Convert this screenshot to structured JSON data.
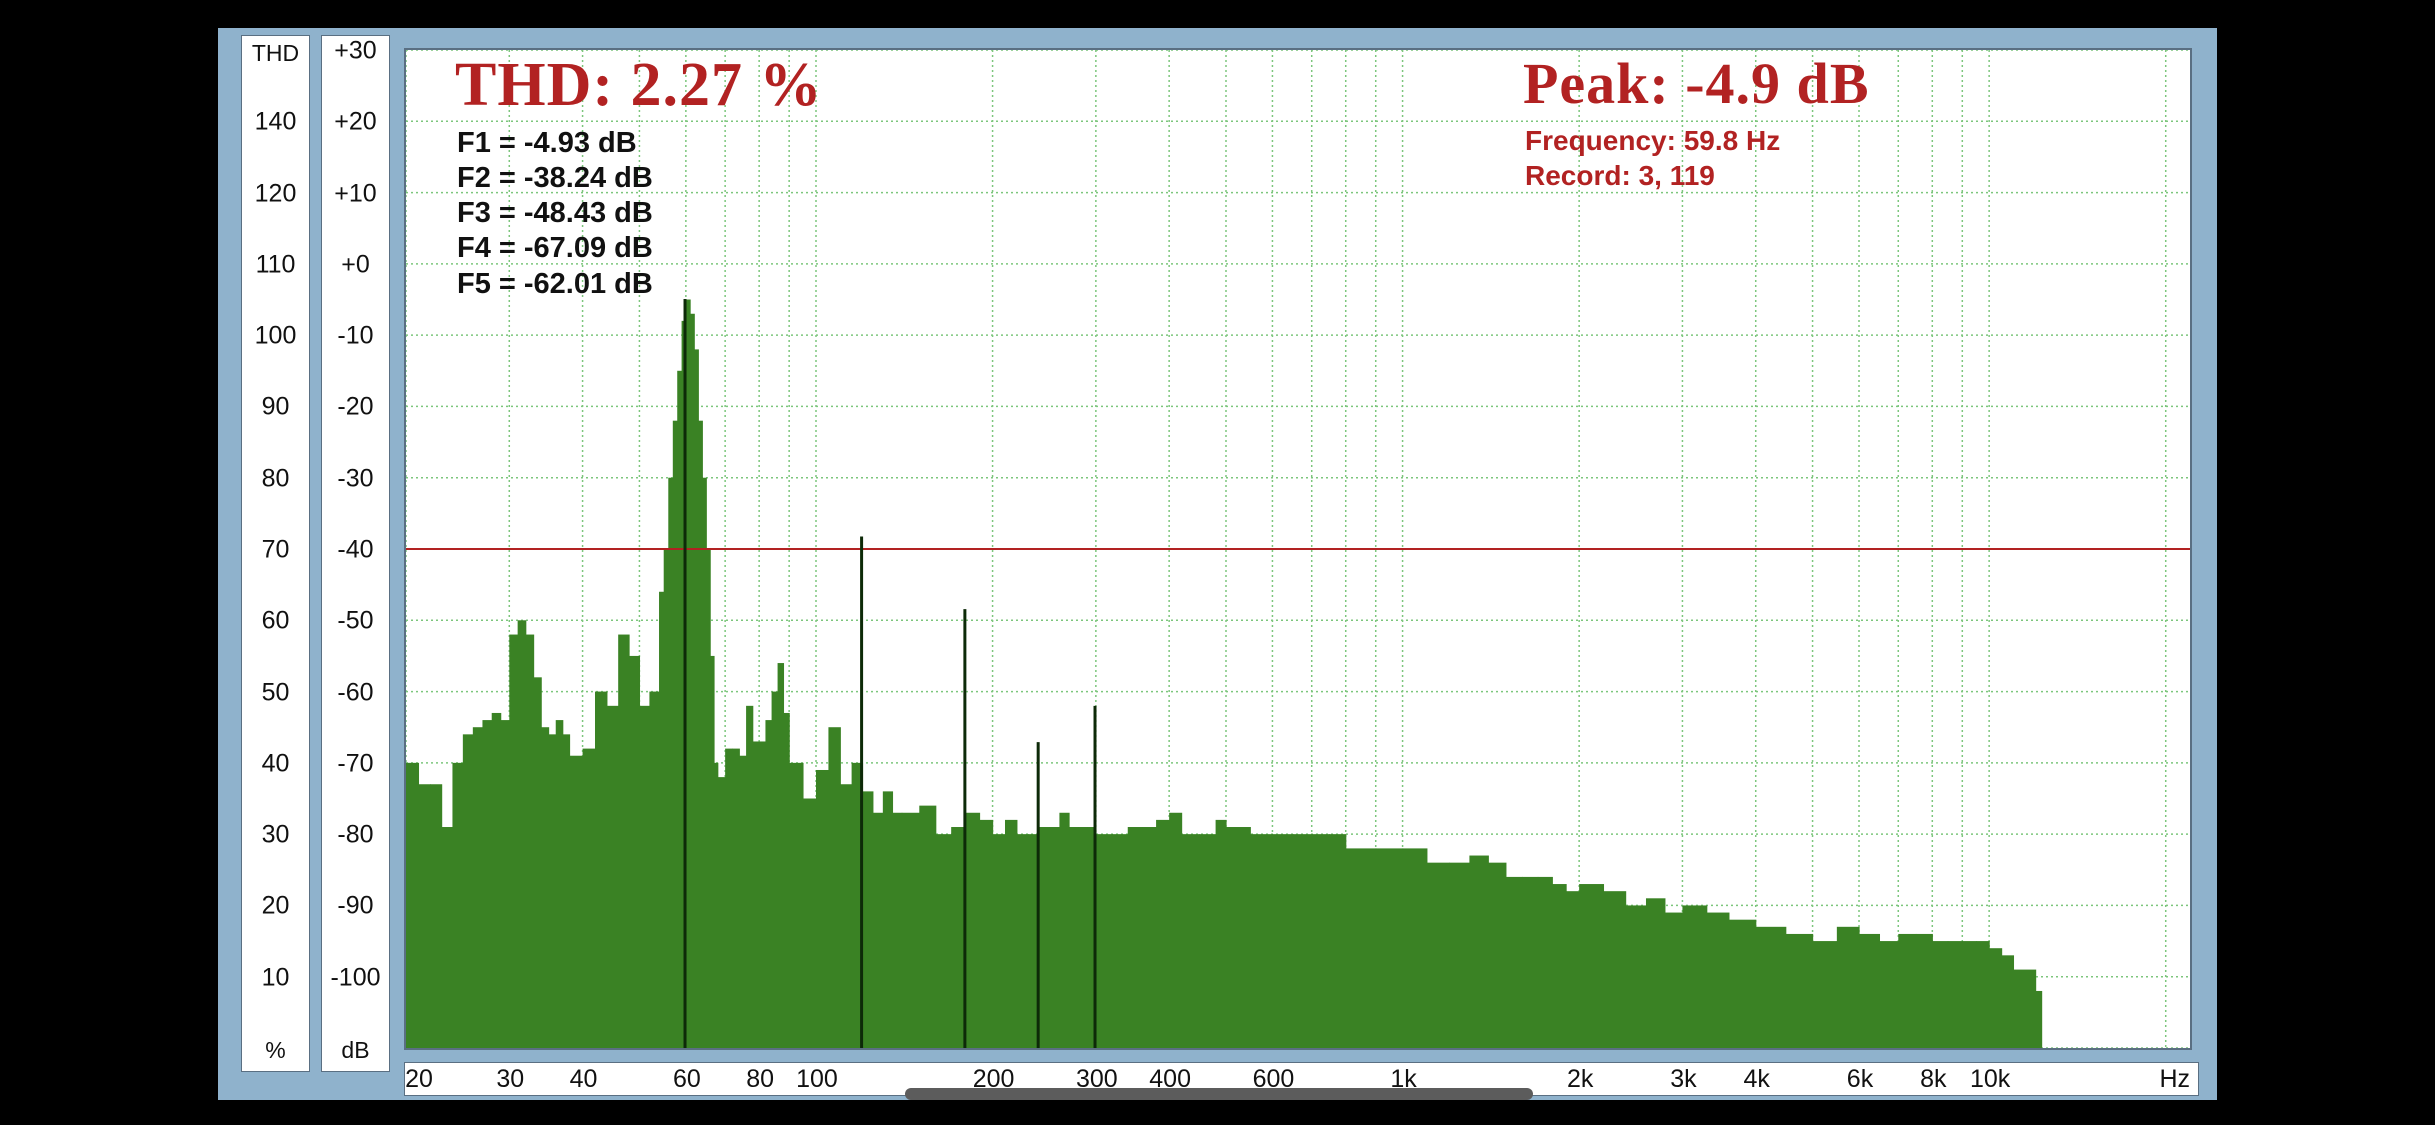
{
  "colors": {
    "bars": "#3a8224",
    "harmonic_lines": "#0d2a08",
    "threshold": "#b22222",
    "grid": "#7cc67c",
    "title_text": "#b22222"
  },
  "thd_scale": {
    "label": "THD",
    "unit": "%",
    "ticks": [
      "140",
      "120",
      "110",
      "100",
      "90",
      "80",
      "70",
      "60",
      "50",
      "40",
      "30",
      "20",
      "10"
    ]
  },
  "db_scale": {
    "unit": "dB",
    "ticks": [
      "+30",
      "+20",
      "+10",
      "+0",
      "-10",
      "-20",
      "-30",
      "-40",
      "-50",
      "-60",
      "-70",
      "-80",
      "-90",
      "-100"
    ]
  },
  "x_axis": {
    "unit": "Hz",
    "tick_labels": [
      "20",
      "30",
      "40",
      "60",
      "80",
      "100",
      "200",
      "300",
      "400",
      "600",
      "1k",
      "2k",
      "3k",
      "4k",
      "6k",
      "8k",
      "10k"
    ]
  },
  "readout": {
    "thd": "THD: 2.27 %",
    "peak": "Peak: -4.9 dB",
    "frequency": "Frequency: 59.8 Hz",
    "record": "Record: 3,  119",
    "harmonics": [
      "F1 = -4.93 dB",
      "F2 = -38.24 dB",
      "F3 = -48.43 dB",
      "F4 = -67.09 dB",
      "F5 = -62.01 dB"
    ]
  },
  "chart_data": {
    "type": "bar",
    "title": "",
    "xlabel": "Hz",
    "ylabel": "dB",
    "x_scale": "log",
    "xlim": [
      20,
      22000
    ],
    "ylim": [
      -110,
      30
    ],
    "grid": true,
    "threshold_db": -40,
    "harmonics": [
      {
        "name": "F1",
        "freq_hz": 59.8,
        "db": -4.93
      },
      {
        "name": "F2",
        "freq_hz": 119.6,
        "db": -38.24
      },
      {
        "name": "F3",
        "freq_hz": 179.4,
        "db": -48.43
      },
      {
        "name": "F4",
        "freq_hz": 239.2,
        "db": -67.09
      },
      {
        "name": "F5",
        "freq_hz": 299,
        "db": -62.01
      }
    ],
    "spectrum_hz": [
      20,
      21,
      22,
      23,
      24,
      25,
      26,
      27,
      28,
      29,
      30,
      31,
      32,
      33,
      34,
      35,
      36,
      37,
      38,
      40,
      42,
      44,
      46,
      48,
      50,
      52,
      54,
      55,
      56,
      57,
      58,
      59,
      60,
      61,
      62,
      63,
      64,
      65,
      66,
      67,
      68,
      70,
      72,
      74,
      76,
      78,
      80,
      82,
      84,
      86,
      88,
      90,
      95,
      100,
      105,
      110,
      115,
      120,
      125,
      130,
      135,
      140,
      150,
      160,
      170,
      180,
      190,
      200,
      210,
      220,
      230,
      240,
      250,
      260,
      270,
      280,
      290,
      300,
      320,
      340,
      360,
      380,
      400,
      420,
      450,
      480,
      500,
      550,
      600,
      650,
      700,
      750,
      800,
      900,
      1000,
      1100,
      1200,
      1300,
      1400,
      1500,
      1600,
      1700,
      1800,
      1900,
      2000,
      2200,
      2400,
      2600,
      2800,
      3000,
      3300,
      3600,
      4000,
      4500,
      5000,
      5500,
      6000,
      6500,
      7000,
      7500,
      8000,
      8500,
      9000,
      9500,
      10000,
      10500,
      11000,
      12000
    ],
    "spectrum_db": [
      -70,
      -73,
      -73,
      -79,
      -70,
      -66,
      -65,
      -64,
      -63,
      -64,
      -52,
      -50,
      -52,
      -58,
      -65,
      -66,
      -64,
      -66,
      -69,
      -68,
      -60,
      -62,
      -52,
      -55,
      -62,
      -60,
      -46,
      -40,
      -30,
      -22,
      -15,
      -8,
      -5,
      -7,
      -12,
      -22,
      -30,
      -40,
      -55,
      -70,
      -72,
      -68,
      -68,
      -69,
      -62,
      -67,
      -67,
      -64,
      -60,
      -56,
      -63,
      -70,
      -75,
      -71,
      -65,
      -73,
      -70,
      -74,
      -77,
      -74,
      -77,
      -77,
      -76,
      -80,
      -79,
      -77,
      -78,
      -80,
      -78,
      -80,
      -80,
      -79,
      -79,
      -77,
      -79,
      -79,
      -79,
      -80,
      -80,
      -79,
      -79,
      -78,
      -77,
      -80,
      -80,
      -78,
      -79,
      -80,
      -80,
      -80,
      -80,
      -80,
      -82,
      -82,
      -82,
      -84,
      -84,
      -83,
      -84,
      -86,
      -86,
      -86,
      -87,
      -88,
      -87,
      -88,
      -90,
      -89,
      -91,
      -90,
      -91,
      -92,
      -93,
      -94,
      -95,
      -93,
      -94,
      -95,
      -94,
      -94,
      -95,
      -95,
      -95,
      -95,
      -96,
      -97,
      -99,
      -102
    ]
  }
}
